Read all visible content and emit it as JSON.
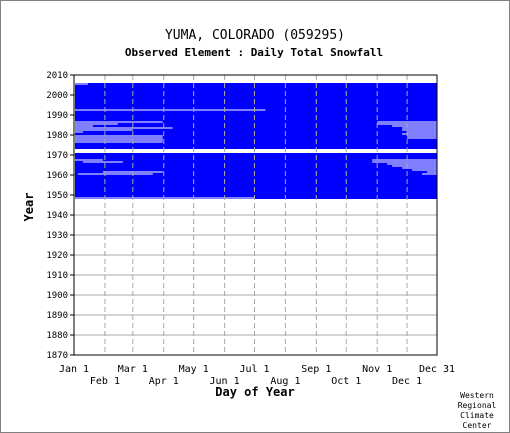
{
  "chart_data": {
    "type": "heatmap",
    "title": "YUMA, COLORADO    (059295)",
    "subtitle": "Observed Element : Daily Total Snowfall",
    "xlabel": "Day of Year",
    "ylabel": "Year",
    "ylim": [
      1870,
      2010
    ],
    "yticks": [
      1870,
      1880,
      1890,
      1900,
      1910,
      1920,
      1930,
      1940,
      1950,
      1960,
      1970,
      1980,
      1990,
      2000,
      2010
    ],
    "xticks_top": [
      "Jan 1",
      "Mar 1",
      "May 1",
      "Jul 1",
      "Sep 1",
      "Nov 1",
      "Dec 31"
    ],
    "xticks_bottom": [
      "Feb 1",
      "Apr 1",
      "Jun 1",
      "Aug 1",
      "Oct 1",
      "Dec 1"
    ],
    "grid": true,
    "data_fill_color": "#0000ff",
    "record_period": [
      1948,
      2005
    ],
    "missing_years": [
      1971,
      1972
    ],
    "missing_segments": [
      {
        "year": 1992,
        "from_day": 1,
        "to_day": 193
      },
      {
        "year": 1986,
        "from_day": 1,
        "to_day": 90
      },
      {
        "year": 1985,
        "from_day": 1,
        "to_day": 45
      },
      {
        "year": 1984,
        "from_day": 1,
        "to_day": 20
      },
      {
        "year": 1983,
        "from_day": 1,
        "to_day": 100
      },
      {
        "year": 1982,
        "from_day": 1,
        "to_day": 60
      },
      {
        "year": 1981,
        "from_day": 1,
        "to_day": 10
      },
      {
        "year": 1979,
        "from_day": 1,
        "to_day": 90
      },
      {
        "year": 1978,
        "from_day": 1,
        "to_day": 90
      },
      {
        "year": 1977,
        "from_day": 1,
        "to_day": 90
      },
      {
        "year": 1976,
        "from_day": 1,
        "to_day": 90
      },
      {
        "year": 1967,
        "from_day": 1,
        "to_day": 30
      },
      {
        "year": 1966,
        "from_day": 10,
        "to_day": 50
      },
      {
        "year": 1961,
        "from_day": 30,
        "to_day": 90
      },
      {
        "year": 1960,
        "from_day": 5,
        "to_day": 80
      },
      {
        "year": 1986,
        "from_day": 305,
        "to_day": 365
      },
      {
        "year": 1985,
        "from_day": 305,
        "to_day": 365
      },
      {
        "year": 1984,
        "from_day": 320,
        "to_day": 365
      },
      {
        "year": 1983,
        "from_day": 330,
        "to_day": 365
      },
      {
        "year": 1982,
        "from_day": 330,
        "to_day": 365
      },
      {
        "year": 1981,
        "from_day": 335,
        "to_day": 365
      },
      {
        "year": 1980,
        "from_day": 330,
        "to_day": 365
      },
      {
        "year": 1979,
        "from_day": 335,
        "to_day": 365
      },
      {
        "year": 1978,
        "from_day": 335,
        "to_day": 365
      },
      {
        "year": 1967,
        "from_day": 300,
        "to_day": 365
      },
      {
        "year": 1966,
        "from_day": 300,
        "to_day": 365
      },
      {
        "year": 1965,
        "from_day": 315,
        "to_day": 365
      },
      {
        "year": 1964,
        "from_day": 320,
        "to_day": 365
      },
      {
        "year": 1963,
        "from_day": 330,
        "to_day": 365
      },
      {
        "year": 1962,
        "from_day": 340,
        "to_day": 365
      },
      {
        "year": 1961,
        "from_day": 355,
        "to_day": 365
      },
      {
        "year": 1960,
        "from_day": 350,
        "to_day": 365
      },
      {
        "year": 1948,
        "from_day": 1,
        "to_day": 182
      },
      {
        "year": 2005,
        "from_day": 1,
        "to_day": 15
      }
    ]
  },
  "credit": [
    "Western",
    "Regional",
    "Climate",
    "Center"
  ]
}
